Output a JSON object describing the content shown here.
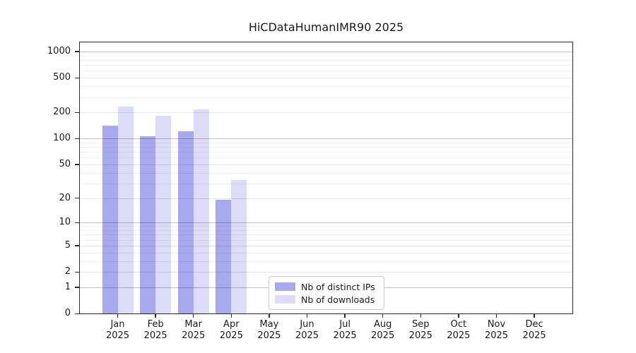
{
  "figure": {
    "title": "HiCDataHumanIMR90 2025"
  },
  "chart_data": {
    "type": "bar",
    "title": "HiCDataHumanIMR90 2025",
    "y_scale": "log1p",
    "ylim": [
      0,
      1270
    ],
    "grid": "horizontal log gridlines, major at powers of 10",
    "legend_position": "inside bottom-center",
    "xlabel": "",
    "ylabel": "",
    "yticks": [
      0,
      1,
      2,
      5,
      10,
      20,
      50,
      100,
      200,
      500,
      1000
    ],
    "grid_mid_ticks": [
      2,
      5,
      20,
      50,
      200,
      500
    ],
    "grid_minor_ticks": [
      3,
      4,
      6,
      7,
      8,
      9,
      30,
      40,
      60,
      70,
      80,
      90,
      300,
      400,
      600,
      700,
      800,
      900
    ],
    "categories": [
      {
        "month": "Jan",
        "year": "2025"
      },
      {
        "month": "Feb",
        "year": "2025"
      },
      {
        "month": "Mar",
        "year": "2025"
      },
      {
        "month": "Apr",
        "year": "2025"
      },
      {
        "month": "May",
        "year": "2025"
      },
      {
        "month": "Jun",
        "year": "2025"
      },
      {
        "month": "Jul",
        "year": "2025"
      },
      {
        "month": "Aug",
        "year": "2025"
      },
      {
        "month": "Sep",
        "year": "2025"
      },
      {
        "month": "Oct",
        "year": "2025"
      },
      {
        "month": "Nov",
        "year": "2025"
      },
      {
        "month": "Dec",
        "year": "2025"
      }
    ],
    "series": [
      {
        "name": "Nb of distinct IPs",
        "color": "#a8a8ef",
        "values": [
          140,
          106,
          120,
          19,
          0,
          0,
          0,
          0,
          0,
          0,
          0,
          0
        ]
      },
      {
        "name": "Nb of downloads",
        "color": "#dcdcf8",
        "values": [
          235,
          184,
          215,
          33,
          0,
          0,
          0,
          0,
          0,
          0,
          0,
          0
        ]
      }
    ]
  },
  "legend": {
    "items": [
      "Nb of distinct IPs",
      "Nb of downloads"
    ]
  }
}
